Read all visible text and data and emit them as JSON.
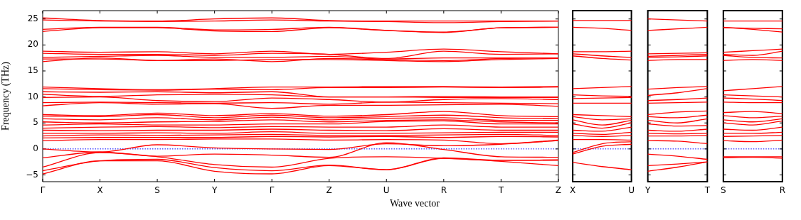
{
  "chart_data": [
    {
      "type": "line",
      "ylabel": "Frequency (THz)",
      "xlabel": "Wave vector",
      "marker": "none",
      "grid": false,
      "categories": [
        "Γ",
        "X",
        "S",
        "Y",
        "Γ",
        "Z",
        "U",
        "R",
        "T",
        "Z"
      ],
      "ylim": [
        -6.3,
        26.6
      ],
      "yticks": [
        -5,
        0,
        5,
        10,
        15,
        20,
        25
      ],
      "ref_lines": [
        {
          "axis": "y",
          "value": 0,
          "color": "#0000ff",
          "line_style": "dotted"
        }
      ],
      "series": [
        {
          "color": "#ff0000",
          "values": [
            25.2,
            24.7,
            24.6,
            25.0,
            25.2,
            24.7,
            24.6,
            24.6,
            24.6,
            24.6
          ]
        },
        {
          "color": "#ff0000",
          "values": [
            24.8,
            24.6,
            24.5,
            24.6,
            24.8,
            24.6,
            24.5,
            24.3,
            24.5,
            24.6
          ]
        },
        {
          "color": "#ff0000",
          "values": [
            23.0,
            23.4,
            23.4,
            22.9,
            23.0,
            23.4,
            22.8,
            22.5,
            23.3,
            23.4
          ]
        },
        {
          "color": "#ff0000",
          "values": [
            22.6,
            23.3,
            23.3,
            22.7,
            22.6,
            23.3,
            22.8,
            22.4,
            23.3,
            23.4
          ]
        },
        {
          "color": "#ff0000",
          "values": [
            18.8,
            18.6,
            18.7,
            18.3,
            18.8,
            18.2,
            18.6,
            19.2,
            18.7,
            18.3
          ]
        },
        {
          "color": "#ff0000",
          "values": [
            18.4,
            18.2,
            18.2,
            18.0,
            18.4,
            18.2,
            17.4,
            18.8,
            18.2,
            18.3
          ]
        },
        {
          "color": "#ff0000",
          "values": [
            17.6,
            17.8,
            18.0,
            17.6,
            17.6,
            17.8,
            17.3,
            17.5,
            17.5,
            17.5
          ]
        },
        {
          "color": "#ff0000",
          "values": [
            16.8,
            17.5,
            17.0,
            17.3,
            16.8,
            17.4,
            17.2,
            17.0,
            17.4,
            17.5
          ]
        },
        {
          "color": "#ff0000",
          "values": [
            17.3,
            17.3,
            17.0,
            17.0,
            17.2,
            17.2,
            17.0,
            16.8,
            17.2,
            17.4
          ]
        },
        {
          "color": "#ff0000",
          "values": [
            11.9,
            11.6,
            11.4,
            11.6,
            11.9,
            11.9,
            12.0,
            12.0,
            11.9,
            12.0
          ]
        },
        {
          "color": "#ff0000",
          "values": [
            11.6,
            11.4,
            11.3,
            11.5,
            11.4,
            11.8,
            11.8,
            11.9,
            11.8,
            11.9
          ]
        },
        {
          "color": "#ff0000",
          "values": [
            11.0,
            10.9,
            11.0,
            10.8,
            11.0,
            10.0,
            10.0,
            10.1,
            10.0,
            10.0
          ]
        },
        {
          "color": "#ff0000",
          "values": [
            10.5,
            10.1,
            10.4,
            10.5,
            10.4,
            10.0,
            10.0,
            9.9,
            9.9,
            9.9
          ]
        },
        {
          "color": "#ff0000",
          "values": [
            9.9,
            10.0,
            9.3,
            9.1,
            9.8,
            9.5,
            9.0,
            9.5,
            9.7,
            9.5
          ]
        },
        {
          "color": "#ff0000",
          "values": [
            8.9,
            9.0,
            8.9,
            8.8,
            8.9,
            8.6,
            9.0,
            8.9,
            8.8,
            8.7
          ]
        },
        {
          "color": "#ff0000",
          "values": [
            8.3,
            8.9,
            8.6,
            8.7,
            7.8,
            8.4,
            8.4,
            8.5,
            8.6,
            8.2
          ]
        },
        {
          "color": "#ff0000",
          "values": [
            6.6,
            6.4,
            6.9,
            6.4,
            6.8,
            6.3,
            6.6,
            7.2,
            6.4,
            6.2
          ]
        },
        {
          "color": "#ff0000",
          "values": [
            6.3,
            6.2,
            6.6,
            6.0,
            6.5,
            6.0,
            6.2,
            6.5,
            6.0,
            5.8
          ]
        },
        {
          "color": "#ff0000",
          "values": [
            5.8,
            5.6,
            6.0,
            5.6,
            6.1,
            5.6,
            5.9,
            6.0,
            5.5,
            5.5
          ]
        },
        {
          "color": "#ff0000",
          "values": [
            5.2,
            5.0,
            5.2,
            5.3,
            5.6,
            5.2,
            5.5,
            5.6,
            5.2,
            5.0
          ]
        },
        {
          "color": "#ff0000",
          "values": [
            4.6,
            4.8,
            4.6,
            4.6,
            4.8,
            4.8,
            5.3,
            5.4,
            4.8,
            4.8
          ]
        },
        {
          "color": "#ff0000",
          "values": [
            4.0,
            4.2,
            4.3,
            4.1,
            4.3,
            4.2,
            4.2,
            4.6,
            4.2,
            4.2
          ]
        },
        {
          "color": "#ff0000",
          "values": [
            3.6,
            3.5,
            3.6,
            3.6,
            3.8,
            3.6,
            3.5,
            3.9,
            3.6,
            3.6
          ]
        },
        {
          "color": "#ff0000",
          "values": [
            3.0,
            3.0,
            3.1,
            3.0,
            3.3,
            3.0,
            3.0,
            3.1,
            3.2,
            3.2
          ]
        },
        {
          "color": "#ff0000",
          "values": [
            2.5,
            2.7,
            2.6,
            2.7,
            2.8,
            2.6,
            2.6,
            2.7,
            2.8,
            2.6
          ]
        },
        {
          "color": "#ff0000",
          "values": [
            2.1,
            2.2,
            2.2,
            2.2,
            2.4,
            2.3,
            2.4,
            2.2,
            2.4,
            2.3
          ]
        },
        {
          "color": "#ff0000",
          "values": [
            1.6,
            1.8,
            1.8,
            1.9,
            1.9,
            1.7,
            1.8,
            1.7,
            1.0,
            1.7
          ]
        },
        {
          "color": "#ff0000",
          "values": [
            0,
            -0.6,
            0.8,
            0.2,
            0,
            -0.1,
            1.0,
            0.6,
            0.9,
            1.6
          ]
        },
        {
          "color": "#ff0000",
          "values": [
            -1.7,
            -0.6,
            -1.4,
            -1.0,
            -1.2,
            -1.6,
            1.2,
            -0.1,
            -1.5,
            -1.6
          ]
        },
        {
          "color": "#ff0000",
          "values": [
            -3.5,
            -0.7,
            -1.5,
            -3.0,
            -3.5,
            -1.8,
            -1.5,
            -1.8,
            -2.2,
            -2.1
          ]
        },
        {
          "color": "#ff0000",
          "values": [
            -4.2,
            -2.3,
            -2.0,
            -3.6,
            -4.2,
            -3.1,
            -4.0,
            -1.7,
            -2.2,
            -2.2
          ]
        },
        {
          "color": "#ff0000",
          "values": [
            -4.8,
            -2.3,
            -2.3,
            -4.3,
            -4.8,
            -3.2,
            -4.0,
            -1.8,
            -2.4,
            -3.2
          ]
        }
      ]
    },
    {
      "type": "line",
      "marker": "none",
      "grid": false,
      "tick_labels": "x",
      "categories": [
        "X",
        null,
        "U"
      ],
      "ylim": [
        -6.3,
        26.6
      ],
      "yticks": [
        -5,
        0,
        5,
        10,
        15,
        20,
        25
      ],
      "ref_lines": [
        {
          "axis": "y",
          "value": 0,
          "color": "#0000ff",
          "line_style": "dotted"
        }
      ],
      "series": [
        {
          "color": "#ff0000",
          "values": [
            24.7,
            24.7,
            24.7
          ]
        },
        {
          "color": "#ff0000",
          "values": [
            23.4,
            23.2,
            22.8
          ]
        },
        {
          "color": "#ff0000",
          "values": [
            18.7,
            18.7,
            18.8
          ]
        },
        {
          "color": "#ff0000",
          "values": [
            18.3,
            17.9,
            17.6
          ]
        },
        {
          "color": "#ff0000",
          "values": [
            17.9,
            17.4,
            17.1
          ]
        },
        {
          "color": "#ff0000",
          "values": [
            11.6,
            11.8,
            12.0
          ]
        },
        {
          "color": "#ff0000",
          "values": [
            10.4,
            10.2,
            10.1
          ]
        },
        {
          "color": "#ff0000",
          "values": [
            9.7,
            9.8,
            9.9
          ]
        },
        {
          "color": "#ff0000",
          "values": [
            8.8,
            8.8,
            8.8
          ]
        },
        {
          "color": "#ff0000",
          "values": [
            6.6,
            6.4,
            6.2
          ]
        },
        {
          "color": "#ff0000",
          "values": [
            6.2,
            5.6,
            5.8
          ]
        },
        {
          "color": "#ff0000",
          "values": [
            5.6,
            4.6,
            5.5
          ]
        },
        {
          "color": "#ff0000",
          "values": [
            4.8,
            4.0,
            5.0
          ]
        },
        {
          "color": "#ff0000",
          "values": [
            3.6,
            3.4,
            4.2
          ]
        },
        {
          "color": "#ff0000",
          "values": [
            3.0,
            2.8,
            3.2
          ]
        },
        {
          "color": "#ff0000",
          "values": [
            2.6,
            2.4,
            2.6
          ]
        },
        {
          "color": "#ff0000",
          "values": [
            1.8,
            1.8,
            1.7
          ]
        },
        {
          "color": "#ff0000",
          "values": [
            -0.7,
            1.0,
            1.4
          ]
        },
        {
          "color": "#ff0000",
          "values": [
            -1.0,
            0.5,
            0.9
          ]
        },
        {
          "color": "#ff0000",
          "values": [
            -2.6,
            -3.4,
            -4.0
          ]
        }
      ]
    },
    {
      "type": "line",
      "marker": "none",
      "grid": false,
      "tick_labels": "x",
      "categories": [
        "Y",
        null,
        "T"
      ],
      "ylim": [
        -6.3,
        26.6
      ],
      "yticks": [
        -5,
        0,
        5,
        10,
        15,
        20,
        25
      ],
      "ref_lines": [
        {
          "axis": "y",
          "value": 0,
          "color": "#0000ff",
          "line_style": "dotted"
        }
      ],
      "series": [
        {
          "color": "#ff0000",
          "values": [
            25.0,
            24.8,
            24.6
          ]
        },
        {
          "color": "#ff0000",
          "values": [
            22.8,
            23.1,
            23.4
          ]
        },
        {
          "color": "#ff0000",
          "values": [
            18.3,
            18.4,
            18.5
          ]
        },
        {
          "color": "#ff0000",
          "values": [
            17.8,
            18.0,
            18.2
          ]
        },
        {
          "color": "#ff0000",
          "values": [
            17.6,
            17.7,
            17.9
          ]
        },
        {
          "color": "#ff0000",
          "values": [
            17.0,
            17.2,
            17.2
          ]
        },
        {
          "color": "#ff0000",
          "values": [
            11.5,
            11.8,
            12.0
          ]
        },
        {
          "color": "#ff0000",
          "values": [
            10.3,
            10.8,
            11.6
          ]
        },
        {
          "color": "#ff0000",
          "values": [
            9.3,
            9.5,
            9.8
          ]
        },
        {
          "color": "#ff0000",
          "values": [
            8.8,
            8.9,
            9.0
          ]
        },
        {
          "color": "#ff0000",
          "values": [
            6.6,
            7.1,
            7.3
          ]
        },
        {
          "color": "#ff0000",
          "values": [
            6.2,
            6.0,
            6.5
          ]
        },
        {
          "color": "#ff0000",
          "values": [
            5.5,
            5.0,
            5.8
          ]
        },
        {
          "color": "#ff0000",
          "values": [
            4.8,
            4.4,
            4.5
          ]
        },
        {
          "color": "#ff0000",
          "values": [
            3.6,
            3.4,
            3.8
          ]
        },
        {
          "color": "#ff0000",
          "values": [
            3.0,
            2.9,
            3.0
          ]
        },
        {
          "color": "#ff0000",
          "values": [
            2.5,
            2.5,
            2.6
          ]
        },
        {
          "color": "#ff0000",
          "values": [
            1.6,
            1.5,
            1.0
          ]
        },
        {
          "color": "#ff0000",
          "values": [
            -1.0,
            -1.4,
            -2.0
          ]
        },
        {
          "color": "#ff0000",
          "values": [
            -3.2,
            -2.9,
            -2.5
          ]
        },
        {
          "color": "#ff0000",
          "values": [
            -4.3,
            -3.5,
            -2.5
          ]
        }
      ]
    },
    {
      "type": "line",
      "marker": "none",
      "grid": false,
      "tick_labels": "x",
      "categories": [
        "S",
        null,
        "R"
      ],
      "ylim": [
        -6.3,
        26.6
      ],
      "yticks": [
        -5,
        0,
        5,
        10,
        15,
        20,
        25
      ],
      "ref_lines": [
        {
          "axis": "y",
          "value": 0,
          "color": "#0000ff",
          "line_style": "dotted"
        }
      ],
      "series": [
        {
          "color": "#ff0000",
          "values": [
            24.6,
            24.6,
            24.6
          ]
        },
        {
          "color": "#ff0000",
          "values": [
            23.4,
            23.0,
            22.5
          ]
        },
        {
          "color": "#ff0000",
          "values": [
            23.3,
            23.2,
            23.1
          ]
        },
        {
          "color": "#ff0000",
          "values": [
            18.6,
            18.9,
            19.2
          ]
        },
        {
          "color": "#ff0000",
          "values": [
            18.2,
            18.0,
            18.8
          ]
        },
        {
          "color": "#ff0000",
          "values": [
            18.0,
            17.6,
            17.5
          ]
        },
        {
          "color": "#ff0000",
          "values": [
            17.0,
            17.2,
            17.0
          ]
        },
        {
          "color": "#ff0000",
          "values": [
            11.2,
            11.6,
            12.0
          ]
        },
        {
          "color": "#ff0000",
          "values": [
            10.4,
            10.2,
            10.0
          ]
        },
        {
          "color": "#ff0000",
          "values": [
            9.8,
            9.6,
            9.3
          ]
        },
        {
          "color": "#ff0000",
          "values": [
            9.0,
            8.9,
            8.9
          ]
        },
        {
          "color": "#ff0000",
          "values": [
            7.0,
            7.2,
            6.8
          ]
        },
        {
          "color": "#ff0000",
          "values": [
            6.4,
            6.0,
            6.3
          ]
        },
        {
          "color": "#ff0000",
          "values": [
            5.6,
            5.2,
            5.8
          ]
        },
        {
          "color": "#ff0000",
          "values": [
            5.0,
            4.6,
            5.4
          ]
        },
        {
          "color": "#ff0000",
          "values": [
            3.8,
            3.6,
            4.2
          ]
        },
        {
          "color": "#ff0000",
          "values": [
            3.0,
            3.0,
            3.2
          ]
        },
        {
          "color": "#ff0000",
          "values": [
            2.4,
            2.5,
            2.6
          ]
        },
        {
          "color": "#ff0000",
          "values": [
            1.6,
            1.4,
            1.7
          ]
        },
        {
          "color": "#ff0000",
          "values": [
            -1.5,
            -1.5,
            -1.5
          ]
        },
        {
          "color": "#ff0000",
          "values": [
            -1.7,
            -1.6,
            -1.8
          ]
        }
      ]
    }
  ]
}
